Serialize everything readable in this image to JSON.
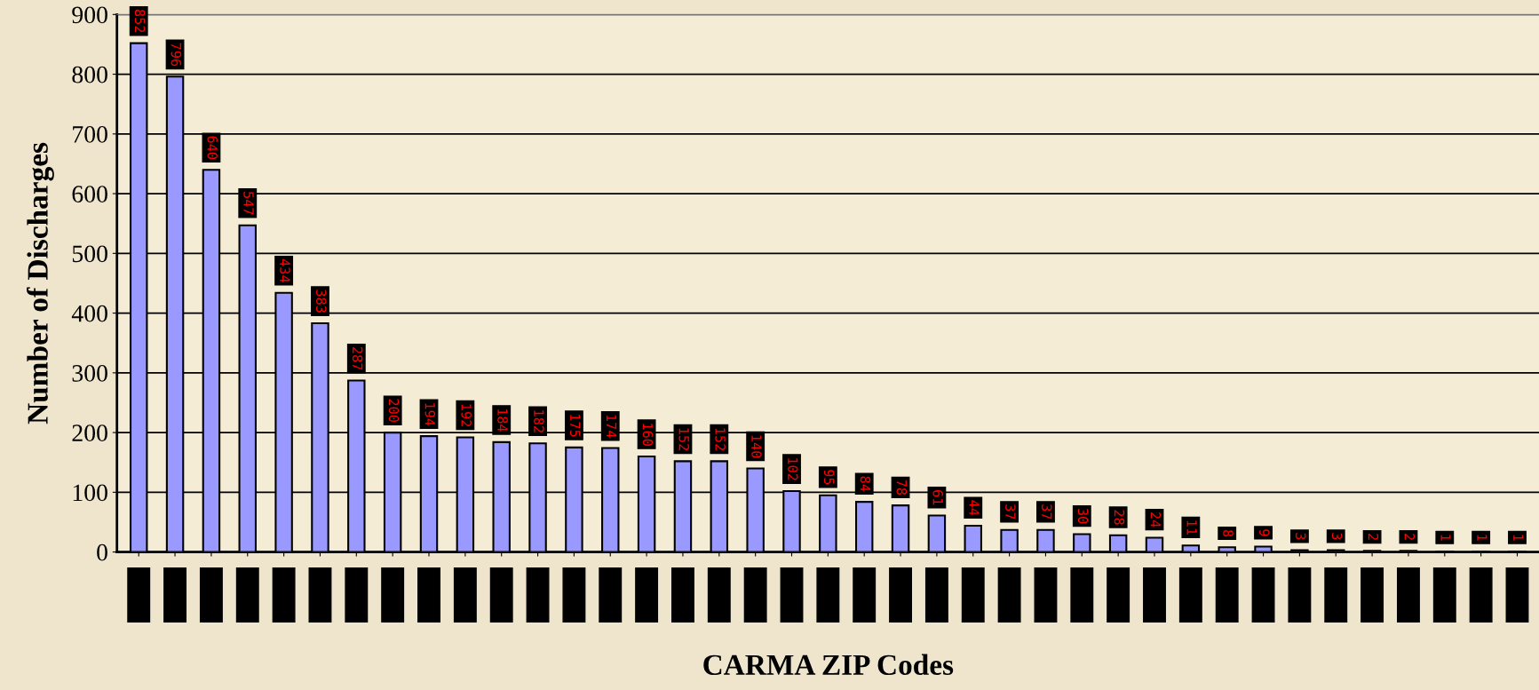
{
  "chart_data": {
    "type": "bar",
    "xlabel": "CARMA ZIP Codes",
    "ylabel": "Number of Discharges",
    "categories": [
      null,
      null,
      null,
      null,
      null,
      null,
      null,
      null,
      null,
      null,
      null,
      null,
      null,
      null,
      null,
      null,
      null,
      null,
      null,
      null,
      null,
      null,
      null,
      null,
      null,
      null,
      null,
      null,
      null,
      null,
      null,
      null,
      null,
      null,
      null,
      null,
      null,
      null,
      null
    ],
    "values": [
      852,
      796,
      640,
      547,
      434,
      383,
      287,
      200,
      194,
      192,
      184,
      182,
      175,
      174,
      160,
      152,
      152,
      140,
      102,
      95,
      84,
      78,
      61,
      44,
      37,
      37,
      30,
      28,
      24,
      11,
      8,
      9,
      3,
      3,
      2,
      2,
      1,
      1,
      1
    ],
    "color": "#9999ff",
    "ylim": [
      0,
      900
    ],
    "yticks": [
      0,
      100,
      200,
      300,
      400,
      500,
      600,
      700,
      800,
      900
    ],
    "grid": "y",
    "data_labels": true
  }
}
